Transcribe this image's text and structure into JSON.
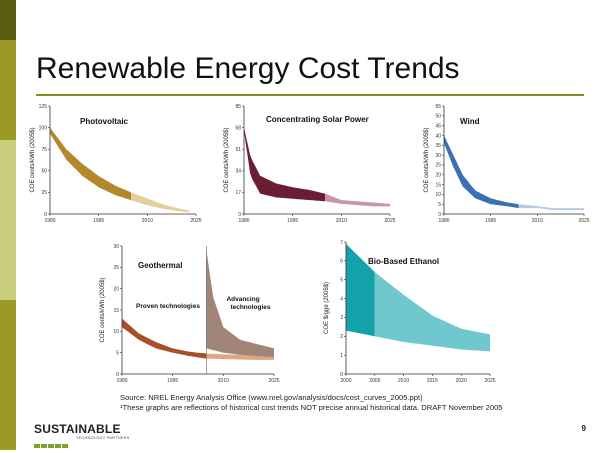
{
  "slide": {
    "title": "Renewable Energy Cost Trends",
    "source_line": "Source: NREL Energy Analysis Office (www.nrel.gov/analysis/docs/cost_curves_2005.ppt)",
    "footnote": "¹These graphs are reflections of historical cost trends NOT precise annual historical data. DRAFT November 2005",
    "logo_name": "SUSTAINABLE",
    "logo_sub": "TECHNOLOGY PARTNERS",
    "page_number": "9"
  },
  "colors": {
    "left_bar": [
      "#5b5b10",
      "#9a9a24",
      "#c9cc7a",
      "#9a9a24"
    ],
    "rule": "#8a8a1e",
    "logo_squares": "#7fa02a"
  },
  "chart_data": [
    {
      "type": "area",
      "title": "Photovoltaic",
      "ylabel": "COE cents/kWh (2005$)",
      "xlim": [
        1980,
        2025
      ],
      "ylim": [
        0,
        125
      ],
      "xticks": [
        "1980",
        "1995",
        "2010",
        "2025"
      ],
      "yticks": [
        "0",
        "25",
        "50",
        "75",
        "100",
        "125"
      ],
      "historical_end": 2005,
      "colors": {
        "historical": "#b3882a",
        "projected": "#e3cf9a"
      },
      "series": [
        {
          "x": [
            1980,
            1985,
            1990,
            1995,
            2000,
            2005,
            2010,
            2015,
            2020,
            2023
          ],
          "upper": [
            100,
            75,
            58,
            44,
            33,
            25,
            18,
            11,
            6,
            4
          ],
          "lower": [
            93,
            63,
            44,
            31,
            22,
            16,
            10,
            6,
            3,
            2
          ]
        }
      ]
    },
    {
      "type": "area",
      "title": "Concentrating Solar Power",
      "ylabel": "COE cents/kWh (2005$)",
      "xlim": [
        1980,
        2025
      ],
      "ylim": [
        0,
        85
      ],
      "xticks": [
        "1980",
        "1995",
        "2010",
        "2025"
      ],
      "yticks": [
        "0",
        "17",
        "34",
        "51",
        "68",
        "85"
      ],
      "historical_end": 2005,
      "colors": {
        "historical": "#6b1e33",
        "projected": "#c796a5"
      },
      "series": [
        {
          "x": [
            1980,
            1982,
            1985,
            1990,
            1995,
            2000,
            2005,
            2010,
            2015,
            2020,
            2025
          ],
          "upper": [
            68,
            45,
            30,
            24,
            21,
            19,
            16,
            11,
            10,
            9,
            8
          ],
          "lower": [
            65,
            30,
            16,
            13,
            12,
            11,
            10,
            8,
            7,
            6,
            6
          ]
        }
      ]
    },
    {
      "type": "area",
      "title": "Wind",
      "ylabel": "COE cents/kWh (2005$)",
      "xlim": [
        1980,
        2025
      ],
      "ylim": [
        0,
        55
      ],
      "xticks": [
        "1980",
        "1995",
        "2010",
        "2025"
      ],
      "yticks": [
        "0",
        "5",
        "10",
        "15",
        "20",
        "25",
        "30",
        "35",
        "40",
        "45",
        "50",
        "55"
      ],
      "historical_end": 2004,
      "colors": {
        "historical": "#3c6fb4",
        "projected": "#b6c9e4"
      },
      "series": [
        {
          "x": [
            1980,
            1983,
            1986,
            1990,
            1995,
            2000,
            2004,
            2010,
            2015,
            2020,
            2025
          ],
          "upper": [
            40,
            30,
            20,
            12,
            8,
            6,
            5,
            4,
            3,
            3,
            3
          ],
          "lower": [
            36,
            24,
            14,
            8,
            5,
            4,
            3,
            3,
            2,
            2,
            2
          ]
        }
      ]
    },
    {
      "type": "area",
      "title": "Geothermal",
      "ylabel": "COE cents/kWh (2005$)",
      "xlim": [
        1980,
        2025
      ],
      "ylim": [
        0,
        30
      ],
      "xticks": [
        "1980",
        "1995",
        "2010",
        "2025"
      ],
      "yticks": [
        "0",
        "5",
        "10",
        "15",
        "20",
        "25",
        "30"
      ],
      "annotations": [
        "Proven technologies",
        "Advancing technologies"
      ],
      "series": [
        {
          "name": "Proven technologies",
          "color": "#a94e2b",
          "x": [
            1980,
            1985,
            1990,
            1995,
            2000,
            2005
          ],
          "upper": [
            13,
            9.5,
            7.5,
            6,
            5.2,
            4.8
          ],
          "lower": [
            11,
            8,
            6,
            5,
            4.2,
            3.6
          ]
        },
        {
          "name": "Proven technologies (projected)",
          "color": "#e0a585",
          "x": [
            2005,
            2010,
            2015,
            2020,
            2025
          ],
          "upper": [
            4.8,
            4.6,
            4.5,
            4.4,
            4.3
          ],
          "lower": [
            3.6,
            3.5,
            3.4,
            3.3,
            3.3
          ]
        },
        {
          "name": "Advancing technologies",
          "color": "#a08478",
          "x": [
            2005,
            2007,
            2010,
            2015,
            2020,
            2025
          ],
          "upper": [
            29,
            18,
            11,
            8,
            7,
            6
          ],
          "lower": [
            6,
            5.6,
            5,
            4.5,
            4.2,
            4
          ]
        }
      ]
    },
    {
      "type": "area",
      "title": "Bio-Based Ethanol",
      "ylabel": "COE $/gge (2005$)",
      "xlim": [
        2000,
        2025
      ],
      "ylim": [
        0,
        7
      ],
      "xticks": [
        "2000",
        "2005",
        "2010",
        "2015",
        "2020",
        "2025"
      ],
      "yticks": [
        "0",
        "1",
        "2",
        "3",
        "4",
        "5",
        "6",
        "7"
      ],
      "historical_end": 2005,
      "colors": {
        "historical": "#13a2aa",
        "projected": "#6fc8cd"
      },
      "series": [
        {
          "x": [
            2000,
            2005,
            2010,
            2015,
            2020,
            2025
          ],
          "upper": [
            6.9,
            5.4,
            4.2,
            3.1,
            2.4,
            2.1
          ],
          "lower": [
            2.3,
            2.0,
            1.7,
            1.5,
            1.3,
            1.2
          ]
        }
      ]
    }
  ]
}
